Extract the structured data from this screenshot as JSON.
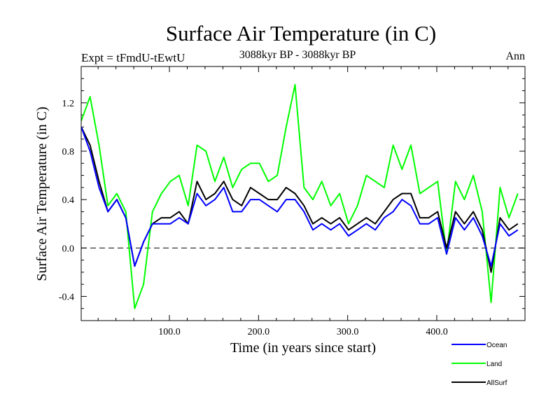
{
  "chart_data": {
    "type": "line",
    "title": "Surface Air Temperature (in C)",
    "subtitle": "3088kyr BP - 3088kyr BP",
    "top_left_label": "Expt = tFmdU-tEwtU",
    "top_right_label": "Ann",
    "xlabel": "Time (in years since start)",
    "ylabel": "Surface Air Temperature (in C)",
    "xlim": [
      1,
      499
    ],
    "ylim": [
      -0.6,
      1.5
    ],
    "x_ticks": [
      100,
      200,
      300,
      400
    ],
    "x_tick_labels": [
      "100.0",
      "200.0",
      "300.0",
      "400.0"
    ],
    "y_ticks": [
      -0.4,
      0.0,
      0.4,
      0.8,
      1.2
    ],
    "y_tick_labels": [
      "-0.4",
      "0.0",
      "0.4",
      "0.8",
      "1.2"
    ],
    "reference_line": {
      "y": 0.0,
      "style": "dashed"
    },
    "legend_position": "bottom-right",
    "series": [
      {
        "name": "Land",
        "color": "#00ff00",
        "x_step": 10,
        "x_start": 1,
        "values": [
          1.05,
          1.25,
          0.85,
          0.35,
          0.45,
          0.3,
          -0.5,
          -0.3,
          0.3,
          0.45,
          0.55,
          0.6,
          0.35,
          0.85,
          0.8,
          0.55,
          0.75,
          0.5,
          0.65,
          0.7,
          0.7,
          0.55,
          0.6,
          1.0,
          1.35,
          0.5,
          0.4,
          0.55,
          0.35,
          0.45,
          0.2,
          0.35,
          0.6,
          0.55,
          0.5,
          0.85,
          0.65,
          0.85,
          0.45,
          0.5,
          0.55,
          -0.05,
          0.55,
          0.4,
          0.6,
          0.3,
          -0.45,
          0.5,
          0.25,
          0.45
        ]
      },
      {
        "name": "AllSurf",
        "color": "#000000",
        "x_step": 10,
        "x_start": 1,
        "values": [
          1.0,
          0.85,
          0.55,
          0.3,
          0.4,
          0.25,
          -0.15,
          0.05,
          0.2,
          0.25,
          0.25,
          0.3,
          0.2,
          0.55,
          0.4,
          0.45,
          0.55,
          0.4,
          0.35,
          0.5,
          0.45,
          0.4,
          0.4,
          0.5,
          0.45,
          0.35,
          0.2,
          0.25,
          0.2,
          0.25,
          0.15,
          0.2,
          0.25,
          0.2,
          0.3,
          0.4,
          0.45,
          0.45,
          0.25,
          0.25,
          0.3,
          0.0,
          0.3,
          0.2,
          0.3,
          0.15,
          -0.2,
          0.25,
          0.15,
          0.2
        ]
      },
      {
        "name": "Ocean",
        "color": "#0000ff",
        "x_step": 10,
        "x_start": 1,
        "values": [
          1.0,
          0.8,
          0.5,
          0.3,
          0.4,
          0.25,
          -0.15,
          0.05,
          0.2,
          0.2,
          0.2,
          0.25,
          0.2,
          0.45,
          0.35,
          0.4,
          0.5,
          0.3,
          0.3,
          0.4,
          0.4,
          0.35,
          0.3,
          0.4,
          0.4,
          0.3,
          0.15,
          0.2,
          0.15,
          0.2,
          0.1,
          0.15,
          0.2,
          0.15,
          0.25,
          0.3,
          0.4,
          0.35,
          0.2,
          0.2,
          0.25,
          -0.05,
          0.25,
          0.15,
          0.25,
          0.1,
          -0.15,
          0.2,
          0.1,
          0.15
        ]
      }
    ]
  }
}
